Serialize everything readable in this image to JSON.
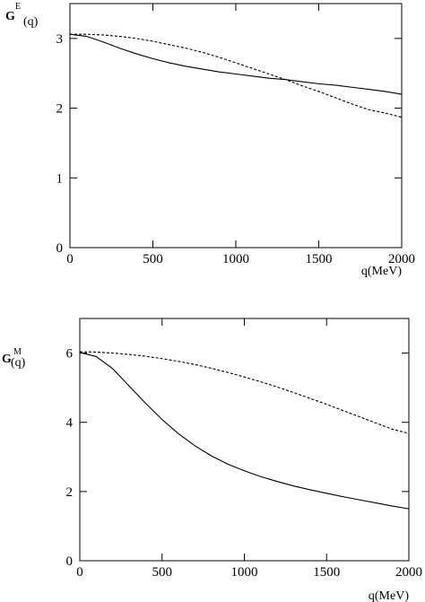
{
  "chart_data": [
    {
      "type": "line",
      "ylabel_main": "G",
      "ylabel_sup": "E",
      "ylabel_arg": "(q)",
      "xlabel": "q(MeV)",
      "xlim": [
        0,
        2000
      ],
      "ylim": [
        0,
        3.5
      ],
      "xticks": [
        0,
        500,
        1000,
        1500,
        2000
      ],
      "yticks": [
        0,
        1,
        2,
        3
      ],
      "grid": false,
      "series": [
        {
          "style": "solid",
          "x": [
            0,
            100,
            200,
            300,
            400,
            500,
            600,
            700,
            800,
            900,
            1000,
            1100,
            1200,
            1300,
            1400,
            1500,
            1600,
            1700,
            1800,
            1900,
            2000
          ],
          "y": [
            3.06,
            3.03,
            2.95,
            2.86,
            2.78,
            2.71,
            2.65,
            2.6,
            2.56,
            2.52,
            2.49,
            2.46,
            2.43,
            2.41,
            2.38,
            2.35,
            2.33,
            2.3,
            2.27,
            2.24,
            2.2
          ]
        },
        {
          "style": "dashed",
          "x": [
            0,
            100,
            200,
            300,
            400,
            500,
            600,
            700,
            800,
            900,
            1000,
            1100,
            1200,
            1300,
            1400,
            1500,
            1600,
            1700,
            1800,
            1900,
            2000
          ],
          "y": [
            3.06,
            3.06,
            3.05,
            3.03,
            3.0,
            2.96,
            2.91,
            2.86,
            2.8,
            2.73,
            2.65,
            2.57,
            2.49,
            2.41,
            2.32,
            2.24,
            2.15,
            2.06,
            1.98,
            1.93,
            1.87
          ]
        }
      ]
    },
    {
      "type": "line",
      "ylabel_main": "G",
      "ylabel_sup": "M",
      "ylabel_arg": "(q)",
      "xlabel": "q(MeV)",
      "xlim": [
        0,
        2000
      ],
      "ylim": [
        0,
        7
      ],
      "xticks": [
        0,
        500,
        1000,
        1500,
        2000
      ],
      "yticks": [
        0,
        2,
        4,
        6
      ],
      "grid": false,
      "series": [
        {
          "style": "solid",
          "x": [
            0,
            100,
            200,
            300,
            400,
            500,
            600,
            700,
            800,
            900,
            1000,
            1100,
            1200,
            1300,
            1400,
            1500,
            1600,
            1700,
            1800,
            1900,
            2000
          ],
          "y": [
            6.02,
            5.9,
            5.55,
            5.05,
            4.55,
            4.08,
            3.67,
            3.32,
            3.03,
            2.79,
            2.6,
            2.43,
            2.29,
            2.16,
            2.05,
            1.95,
            1.85,
            1.76,
            1.67,
            1.58,
            1.5
          ]
        },
        {
          "style": "dashed",
          "x": [
            0,
            100,
            200,
            300,
            400,
            500,
            600,
            700,
            800,
            900,
            1000,
            1100,
            1200,
            1300,
            1400,
            1500,
            1600,
            1700,
            1800,
            1900,
            2000
          ],
          "y": [
            6.04,
            6.03,
            6.0,
            5.96,
            5.91,
            5.84,
            5.76,
            5.67,
            5.56,
            5.44,
            5.31,
            5.17,
            5.02,
            4.86,
            4.69,
            4.52,
            4.34,
            4.16,
            3.98,
            3.8,
            3.68
          ]
        }
      ]
    }
  ]
}
